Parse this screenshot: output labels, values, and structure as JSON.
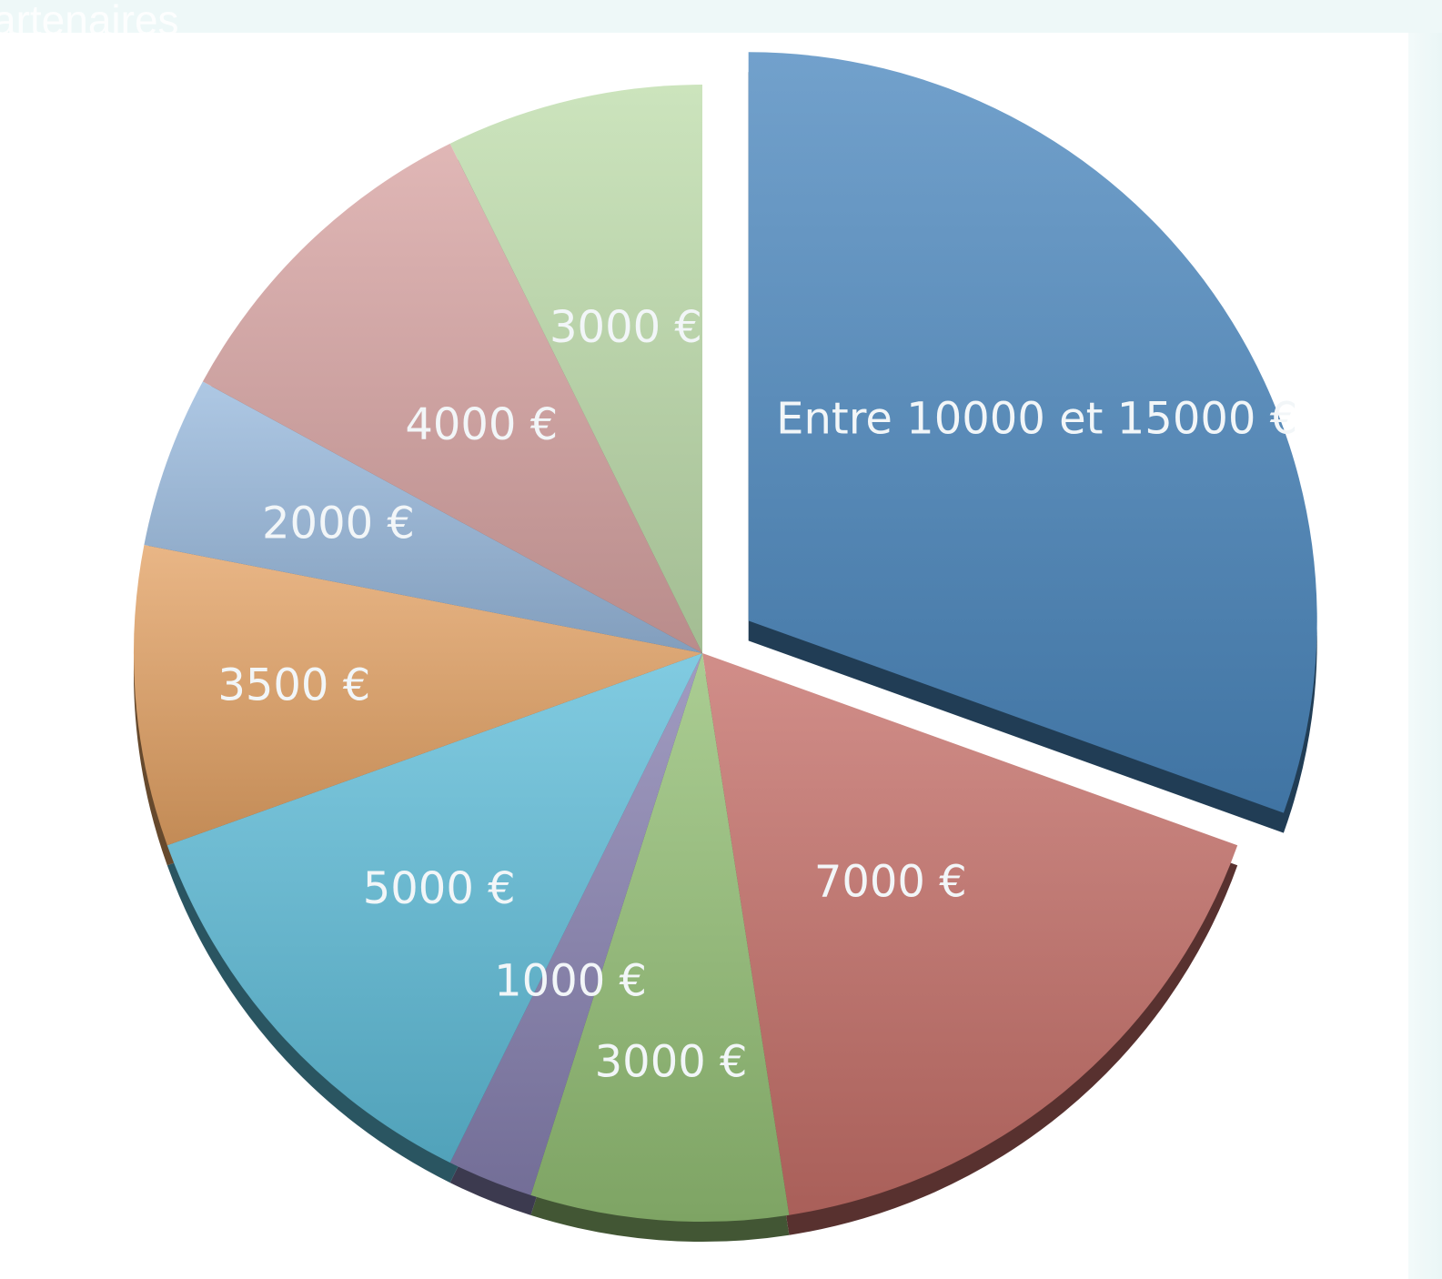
{
  "header": {
    "title": "artenaires"
  },
  "chart_data": {
    "type": "pie",
    "title": "",
    "slices": [
      {
        "label": "Entre 10000 et 15000 €",
        "value": 12500,
        "color": "#4a87be",
        "exploded": true
      },
      {
        "label": "7000 €",
        "value": 7000,
        "color": "#c46e68"
      },
      {
        "label": "3000 €",
        "value": 3000,
        "color": "#93bf74"
      },
      {
        "label": "1000 €",
        "value": 1000,
        "color": "#8680b0"
      },
      {
        "label": "5000 €",
        "value": 5000,
        "color": "#5ebcd8"
      },
      {
        "label": "3500 €",
        "value": 3500,
        "color": "#e3a264"
      },
      {
        "label": "2000 €",
        "value": 2000,
        "color": "#97b8dc"
      },
      {
        "label": "4000 €",
        "value": 4000,
        "color": "#d7a3a2"
      },
      {
        "label": "3000 €",
        "value": 3000,
        "color": "#bddcab"
      }
    ]
  }
}
